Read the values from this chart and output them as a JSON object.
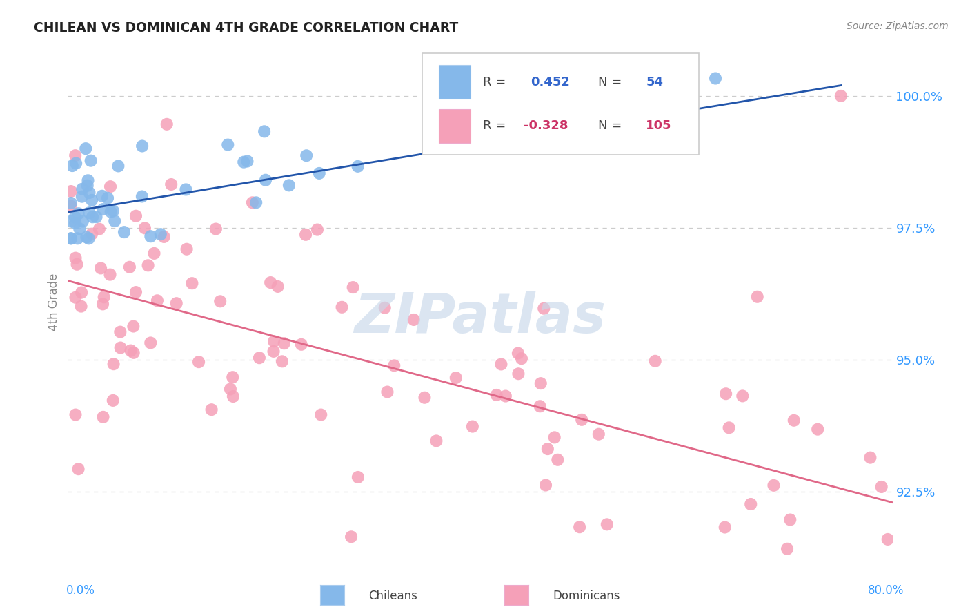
{
  "title": "CHILEAN VS DOMINICAN 4TH GRADE CORRELATION CHART",
  "source": "Source: ZipAtlas.com",
  "ylabel": "4th Grade",
  "x_min": 0.0,
  "x_max": 80.0,
  "y_min": 91.2,
  "y_max": 101.0,
  "y_ticks": [
    92.5,
    95.0,
    97.5,
    100.0
  ],
  "y_tick_labels": [
    "92.5%",
    "95.0%",
    "97.5%",
    "100.0%"
  ],
  "blue_color": "#85B8EA",
  "blue_line_color": "#2255AA",
  "pink_color": "#F5A0B8",
  "pink_line_color": "#E06888",
  "watermark_color": "#C8D8EA",
  "grid_color": "#CCCCCC",
  "blue_line_x0": 0.0,
  "blue_line_y0": 97.8,
  "blue_line_x1": 75.0,
  "blue_line_y1": 100.2,
  "pink_line_x0": 0.0,
  "pink_line_y0": 96.5,
  "pink_line_x1": 80.0,
  "pink_line_y1": 92.3
}
